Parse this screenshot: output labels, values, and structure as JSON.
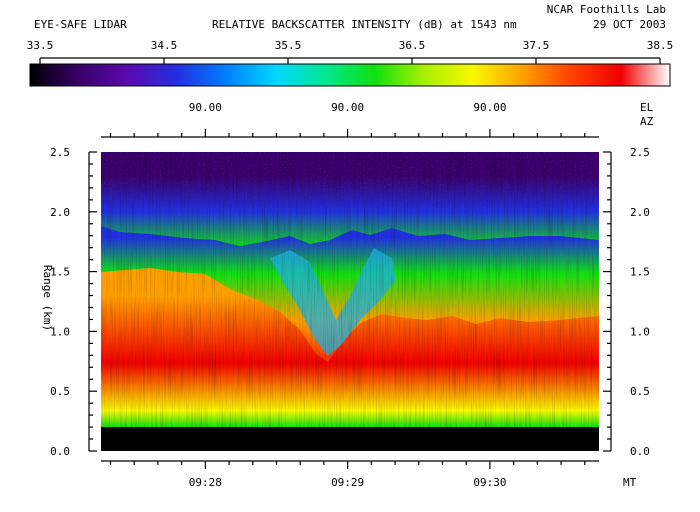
{
  "header": {
    "instrument": "EYE-SAFE LIDAR",
    "title": "RELATIVE BACKSCATTER INTENSITY (dB) at 1543 nm",
    "lab": "NCAR Foothills Lab",
    "date": "29 OCT 2003"
  },
  "colorbar": {
    "min": 33.5,
    "max": 38.5,
    "tick_labels": [
      "33.5",
      "34.5",
      "35.5",
      "36.5",
      "37.5",
      "38.5"
    ],
    "stops": [
      "#000000",
      "#3a006a",
      "#5a0ab0",
      "#2030e0",
      "#0080ff",
      "#00d8ff",
      "#00e890",
      "#10e010",
      "#a8f000",
      "#f8f800",
      "#ffa000",
      "#ff4000",
      "#f00000",
      "#ffffff"
    ]
  },
  "scan": {
    "el_label": "EL",
    "az_label": "AZ",
    "elevation_labels": [
      "90.00",
      "90.00",
      "90.00"
    ]
  },
  "chart_data": {
    "type": "heatmap",
    "title": "RELATIVE BACKSCATTER INTENSITY (dB) at 1543 nm",
    "xlabel": "MT",
    "ylabel": "Range (km)",
    "x_tick_labels": [
      "09:28",
      "09:29",
      "09:30"
    ],
    "y_tick_labels": [
      "0.0",
      "0.5",
      "1.0",
      "1.5",
      "2.0",
      "2.5"
    ],
    "ylim": [
      0,
      2.5
    ],
    "value_units": "dB",
    "value_range": [
      33.5,
      38.5
    ],
    "time_range": [
      "09:27:16",
      "09:30:46"
    ],
    "layers_by_range_km": [
      {
        "range": [
          0.0,
          0.2
        ],
        "value_db": 33.5
      },
      {
        "range": [
          0.2,
          0.32
        ],
        "value_db": 35.0
      },
      {
        "range": [
          0.32,
          0.42
        ],
        "value_db": 36.3
      },
      {
        "range": [
          0.42,
          0.55
        ],
        "value_db": 36.9
      },
      {
        "range": [
          0.55,
          1.1
        ],
        "value_db": 38.1
      },
      {
        "range": [
          1.1,
          1.5
        ],
        "value_db": 37.2
      },
      {
        "range": [
          1.5,
          1.9
        ],
        "value_db": 36.2
      },
      {
        "range": [
          1.9,
          2.1
        ],
        "value_db": 34.8
      },
      {
        "range": [
          2.1,
          2.5
        ],
        "value_db": 34.0
      }
    ]
  }
}
